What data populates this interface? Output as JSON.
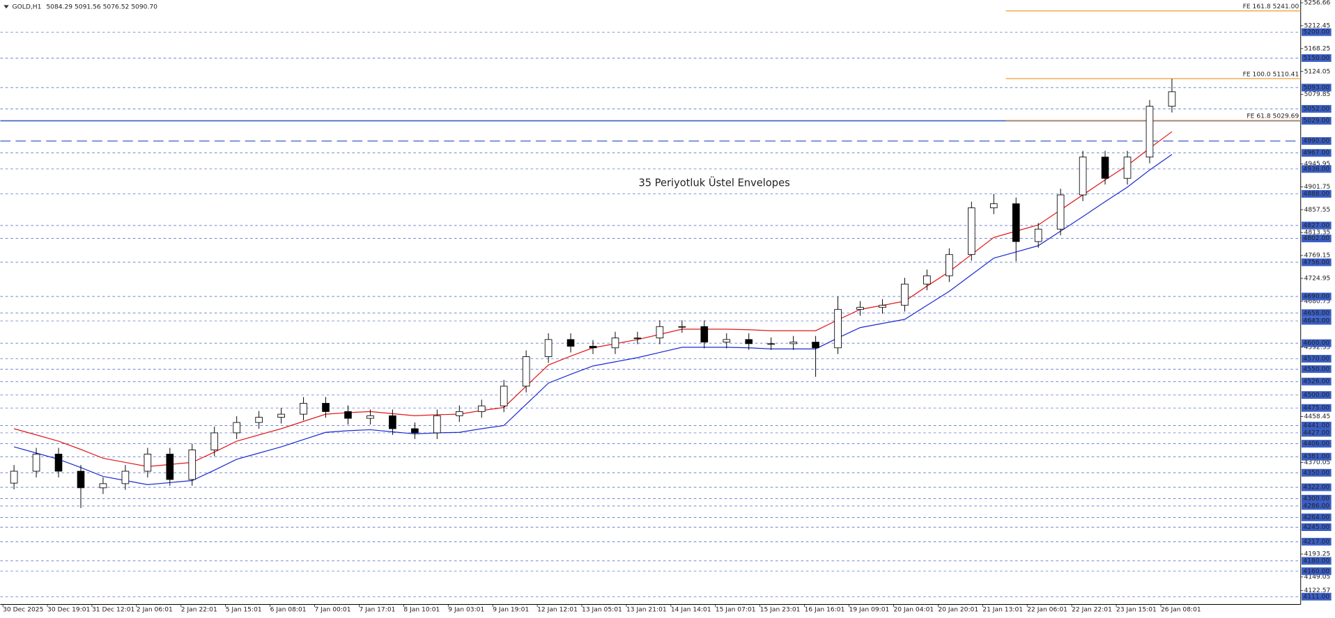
{
  "chart_data": {
    "type": "candlestick",
    "symbol": "GOLD,H1",
    "quote": "5084.29 5091.56 5076.52 5090.70",
    "annotation": "35 Periyotluk Üstel Envelopes",
    "categories": [
      "30 Dec 2025",
      null,
      "30 Dec 19:01",
      null,
      "31 Dec 12:01",
      null,
      "2 Jan 06:01",
      null,
      "2 Jan 22:01",
      null,
      "5 Jan 15:01",
      null,
      "6 Jan 08:01",
      null,
      "7 Jan 00:01",
      null,
      "7 Jan 17:01",
      null,
      "8 Jan 10:01",
      null,
      "9 Jan 03:01",
      null,
      "9 Jan 19:01",
      null,
      "12 Jan 12:01",
      null,
      "13 Jan 05:01",
      null,
      "13 Jan 21:01",
      null,
      "14 Jan 14:01",
      null,
      "15 Jan 07:01",
      null,
      "15 Jan 23:01",
      null,
      "16 Jan 16:01",
      null,
      "19 Jan 09:01",
      null,
      "20 Jan 04:01",
      null,
      "20 Jan 20:01",
      null,
      "21 Jan 13:01",
      null,
      "22 Jan 06:01",
      null,
      "22 Jan 22:01",
      null,
      "23 Jan 15:01",
      null,
      "26 Jan 08:01"
    ],
    "open": [
      4330,
      4353,
      4386,
      4353,
      4321,
      4329,
      4353,
      4386,
      4337,
      4394,
      4427,
      4447,
      4457,
      4463,
      4484,
      4468,
      4455,
      4460,
      4435,
      4427,
      4460,
      4468,
      4479,
      4517,
      4574,
      4607,
      4594,
      4591,
      4610,
      4610,
      4632,
      4632,
      4602,
      4607,
      4599,
      4599,
      4602,
      4591,
      4665,
      4669,
      4673,
      4714,
      4730,
      4771,
      4861,
      4869,
      4796,
      4820,
      4886,
      4959,
      4918,
      4959,
      5057
    ],
    "high": [
      4365,
      4398,
      4398,
      4365,
      4341,
      4365,
      4398,
      4398,
      4406,
      4439,
      4459,
      4469,
      4475,
      4496,
      4496,
      4480,
      4472,
      4472,
      4447,
      4472,
      4480,
      4491,
      4529,
      4586,
      4619,
      4619,
      4606,
      4622,
      4622,
      4644,
      4644,
      4644,
      4619,
      4619,
      4611,
      4614,
      4614,
      4690,
      4681,
      4685,
      4726,
      4742,
      4783,
      4873,
      4888,
      4881,
      4832,
      4898,
      4971,
      4971,
      4971,
      5069,
      5110
    ],
    "low": [
      4318,
      4341,
      4341,
      4282,
      4309,
      4317,
      4341,
      4325,
      4325,
      4382,
      4415,
      4435,
      4445,
      4451,
      4456,
      4443,
      4443,
      4423,
      4415,
      4415,
      4448,
      4456,
      4467,
      4505,
      4562,
      4582,
      4579,
      4579,
      4598,
      4598,
      4620,
      4590,
      4590,
      4587,
      4587,
      4587,
      4535,
      4579,
      4653,
      4657,
      4661,
      4702,
      4718,
      4759,
      4849,
      4758,
      4784,
      4808,
      4874,
      4906,
      4906,
      4947,
      5045
    ],
    "close": [
      4353,
      4386,
      4353,
      4321,
      4329,
      4353,
      4386,
      4337,
      4394,
      4427,
      4447,
      4457,
      4463,
      4484,
      4468,
      4455,
      4460,
      4435,
      4427,
      4460,
      4468,
      4479,
      4517,
      4574,
      4607,
      4594,
      4591,
      4610,
      4610,
      4632,
      4632,
      4602,
      4607,
      4599,
      4599,
      4602,
      4591,
      4665,
      4669,
      4673,
      4714,
      4730,
      4771,
      4861,
      4869,
      4796,
      4820,
      4886,
      4959,
      4918,
      4959,
      5057,
      5085
    ],
    "envelopes": [
      {
        "color": "#e01818",
        "values": [
          4435,
          4423,
          4411,
          4395,
          4378,
          4370,
          4362,
          4366,
          4370,
          4390,
          4411,
          4423,
          4435,
          4449,
          4463,
          4466,
          4468,
          4464,
          4460,
          4462,
          4463,
          4470,
          4476,
          4517,
          4558,
          4575,
          4591,
          4599,
          4607,
          4617,
          4627,
          4627,
          4627,
          4626,
          4624,
          4624,
          4624,
          4645,
          4665,
          4673,
          4681,
          4710,
          4738,
          4771,
          4804,
          4816,
          4828,
          4857,
          4886,
          4915,
          4943,
          4976,
          5008
        ]
      },
      {
        "color": "#1a2ad0",
        "values": [
          4400,
          4388,
          4376,
          4360,
          4343,
          4335,
          4327,
          4331,
          4335,
          4355,
          4376,
          4388,
          4400,
          4414,
          4428,
          4431,
          4433,
          4429,
          4425,
          4427,
          4428,
          4435,
          4441,
          4482,
          4523,
          4540,
          4556,
          4564,
          4572,
          4582,
          4592,
          4592,
          4592,
          4591,
          4589,
          4589,
          4589,
          4610,
          4630,
          4638,
          4646,
          4673,
          4700,
          4732,
          4764,
          4776,
          4788,
          4816,
          4844,
          4873,
          4901,
          4934,
          4964
        ]
      }
    ],
    "ylim": [
      4096,
      5262
    ],
    "yticks": [
      5256.66,
      5212.45,
      5168.25,
      5124.05,
      5079.85,
      4945.95,
      4901.75,
      4857.55,
      4813.35,
      4769.15,
      4724.95,
      4680.75,
      4592.35,
      4458.45,
      4370.05,
      4193.25,
      4149.05,
      4122.57
    ],
    "levels": [
      {
        "value": 5200,
        "label": "5200.00"
      },
      {
        "value": 5150,
        "label": "5150.00"
      },
      {
        "value": 5093,
        "label": "5093.00"
      },
      {
        "value": 5052,
        "label": "5052.00"
      },
      {
        "value": 5029,
        "label": "5029.00",
        "style": "solid"
      },
      {
        "value": 4990,
        "label": "4990.00",
        "style": "long-dash"
      },
      {
        "value": 4967,
        "label": "4967.00"
      },
      {
        "value": 4936,
        "label": "4936.00"
      },
      {
        "value": 4888,
        "label": "4888.00"
      },
      {
        "value": 4827,
        "label": "4827.00"
      },
      {
        "value": 4802,
        "label": "4802.00"
      },
      {
        "value": 4756,
        "label": "4756.00"
      },
      {
        "value": 4690,
        "label": "4690.00"
      },
      {
        "value": 4658,
        "label": "4658.00"
      },
      {
        "value": 4643,
        "label": "4643.00"
      },
      {
        "value": 4600,
        "label": "4600.00"
      },
      {
        "value": 4570,
        "label": "4570.00"
      },
      {
        "value": 4550,
        "label": "4550.00"
      },
      {
        "value": 4526,
        "label": "4526.00"
      },
      {
        "value": 4500,
        "label": "4500.00"
      },
      {
        "value": 4475,
        "label": "4475.00"
      },
      {
        "value": 4441,
        "label": "4441.00"
      },
      {
        "value": 4427,
        "label": "4427.00"
      },
      {
        "value": 4406,
        "label": "4406.00"
      },
      {
        "value": 4381,
        "label": "4381.00"
      },
      {
        "value": 4350,
        "label": "4350.00"
      },
      {
        "value": 4322,
        "label": "4322.00"
      },
      {
        "value": 4300,
        "label": "4300.00"
      },
      {
        "value": 4286,
        "label": "4286.00"
      },
      {
        "value": 4264,
        "label": "4264.00"
      },
      {
        "value": 4245,
        "label": "4245.00"
      },
      {
        "value": 4217,
        "label": "4217.00"
      },
      {
        "value": 4180,
        "label": "4180.00"
      },
      {
        "value": 4160,
        "label": "4160.00"
      },
      {
        "value": 4111,
        "label": "4111.00"
      }
    ],
    "fib_levels": [
      {
        "value": 5241,
        "label": "FE 161.8 5241.00"
      },
      {
        "value": 5110.41,
        "label": "FE 100.0 5110.41"
      },
      {
        "value": 5029.69,
        "label": "FE 61.8 5029.69"
      }
    ],
    "level_color": "#3a5ec4",
    "fib_color": "#f0901a",
    "annotation_color": "#4a78d4"
  }
}
